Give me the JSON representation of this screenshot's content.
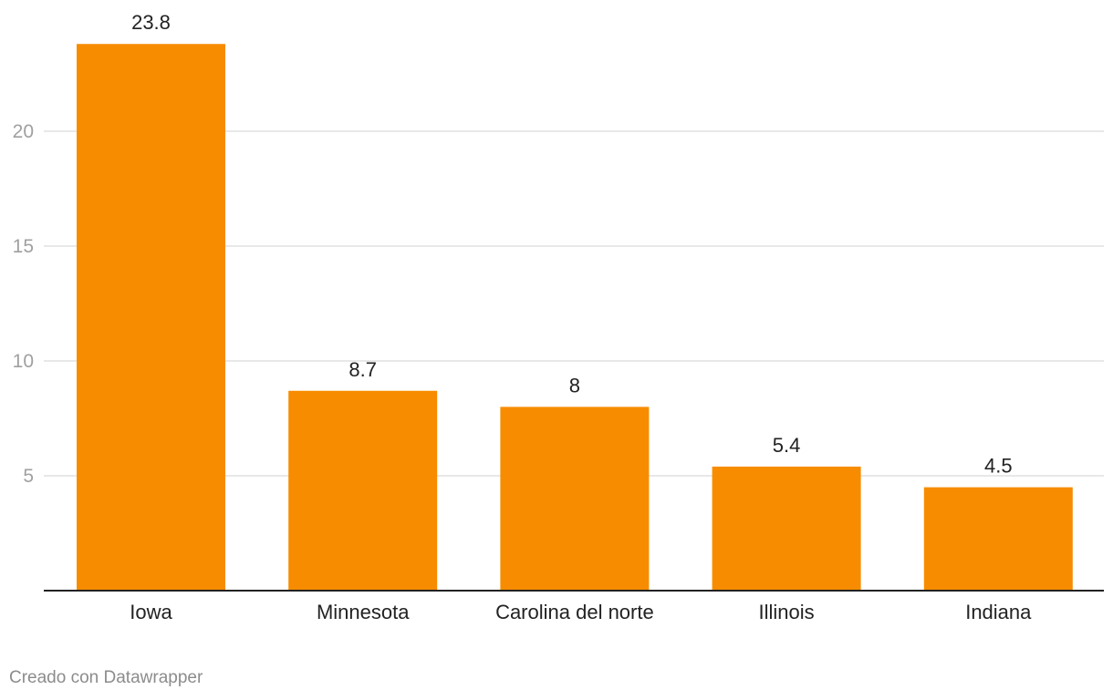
{
  "chart_data": {
    "type": "bar",
    "categories": [
      "Iowa",
      "Minnesota",
      "Carolina del norte",
      "Illinois",
      "Indiana"
    ],
    "values": [
      23.8,
      8.7,
      8,
      5.4,
      4.5
    ],
    "value_labels": [
      "23.8",
      "8.7",
      "8",
      "5.4",
      "4.5"
    ],
    "yticks": [
      5,
      10,
      15,
      20
    ],
    "ylim": [
      0,
      25
    ],
    "grid": true,
    "bar_color": "#f78c00",
    "title": "",
    "xlabel": "",
    "ylabel": ""
  },
  "footer": {
    "credit": "Creado con Datawrapper"
  }
}
